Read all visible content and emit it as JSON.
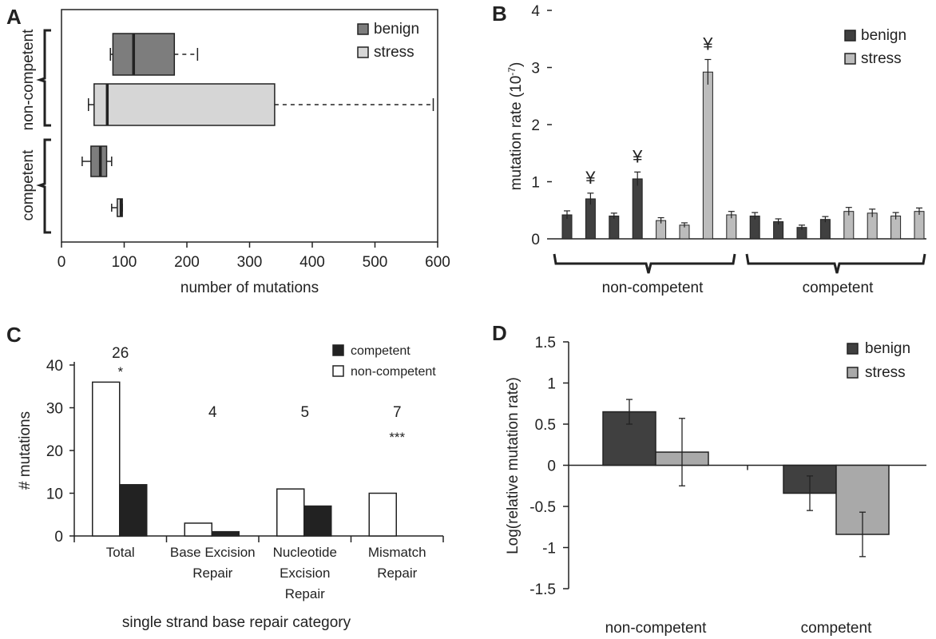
{
  "chart_data": [
    {
      "panel": "A",
      "type": "box",
      "orientation": "horizontal",
      "xlabel": "number of mutations",
      "xlim": [
        0,
        600
      ],
      "xticks": [
        0,
        100,
        200,
        300,
        400,
        500,
        600
      ],
      "group_labels": [
        "non-competent",
        "competent"
      ],
      "legend": [
        "benign",
        "stress"
      ],
      "legend_position": "top-right",
      "colors": {
        "benign": "#7d7d7d",
        "stress": "#d6d6d6"
      },
      "boxes": [
        {
          "group": "non-competent",
          "series": "benign",
          "whisker_low": 78,
          "q1": 82,
          "median": 115,
          "q3": 180,
          "whisker_high": 217
        },
        {
          "group": "non-competent",
          "series": "stress",
          "whisker_low": 43,
          "q1": 52,
          "median": 73,
          "q3": 340,
          "whisker_high": 593
        },
        {
          "group": "competent",
          "series": "benign",
          "whisker_low": 33,
          "q1": 47,
          "median": 62,
          "q3": 72,
          "whisker_high": 80
        },
        {
          "group": "competent",
          "series": "stress",
          "whisker_low": 80,
          "q1": 89,
          "median": 95,
          "q3": 97,
          "whisker_high": 97
        }
      ]
    },
    {
      "panel": "B",
      "type": "bar",
      "ylabel": "mutation rate (10",
      "ylabel_sup": "-7",
      "ylabel_close": ")",
      "ylim": [
        0,
        4
      ],
      "yticks": [
        0,
        1,
        2,
        3,
        4
      ],
      "group_labels": [
        "non-competent",
        "competent"
      ],
      "legend": [
        "benign",
        "stress"
      ],
      "legend_position": "top-right",
      "colors": {
        "benign": "#404040",
        "stress": "#bcbcbc"
      },
      "bars": [
        {
          "value": 0.42,
          "err": 0.07,
          "series": "benign",
          "mark": ""
        },
        {
          "value": 0.7,
          "err": 0.1,
          "series": "benign",
          "mark": "¥"
        },
        {
          "value": 0.4,
          "err": 0.05,
          "series": "benign",
          "mark": ""
        },
        {
          "value": 1.05,
          "err": 0.12,
          "series": "benign",
          "mark": "¥"
        },
        {
          "value": 0.32,
          "err": 0.05,
          "series": "stress",
          "mark": ""
        },
        {
          "value": 0.24,
          "err": 0.04,
          "series": "stress",
          "mark": ""
        },
        {
          "value": 2.92,
          "err": 0.22,
          "series": "stress",
          "mark": "¥"
        },
        {
          "value": 0.42,
          "err": 0.06,
          "series": "stress",
          "mark": ""
        },
        {
          "value": 0.4,
          "err": 0.06,
          "series": "benign",
          "mark": ""
        },
        {
          "value": 0.3,
          "err": 0.05,
          "series": "benign",
          "mark": ""
        },
        {
          "value": 0.2,
          "err": 0.04,
          "series": "benign",
          "mark": ""
        },
        {
          "value": 0.34,
          "err": 0.05,
          "series": "benign",
          "mark": ""
        },
        {
          "value": 0.48,
          "err": 0.07,
          "series": "stress",
          "mark": ""
        },
        {
          "value": 0.45,
          "err": 0.07,
          "series": "stress",
          "mark": ""
        },
        {
          "value": 0.4,
          "err": 0.06,
          "series": "stress",
          "mark": ""
        },
        {
          "value": 0.48,
          "err": 0.06,
          "series": "stress",
          "mark": ""
        }
      ]
    },
    {
      "panel": "C",
      "type": "bar",
      "xlabel": "single strand base repair category",
      "ylabel": "# mutations",
      "ylim": [
        0,
        40
      ],
      "yticks": [
        0,
        10,
        20,
        30,
        40
      ],
      "legend": [
        "competent",
        "non-competent"
      ],
      "legend_position": "top-right",
      "colors": {
        "competent": "#222222",
        "non-competent": "#ffffff"
      },
      "categories": [
        {
          "label_lines": [
            "Total"
          ],
          "count": "26",
          "sig": "*"
        },
        {
          "label_lines": [
            "Base Excision",
            "Repair"
          ],
          "count": "4",
          "sig": ""
        },
        {
          "label_lines": [
            "Nucleotide",
            "Excision",
            "Repair"
          ],
          "count": "5",
          "sig": ""
        },
        {
          "label_lines": [
            "Mismatch",
            "Repair"
          ],
          "count": "7",
          "sig": "***"
        }
      ],
      "series": [
        {
          "name": "non-competent",
          "values": [
            36,
            3,
            11,
            10
          ]
        },
        {
          "name": "competent",
          "values": [
            12,
            1,
            7,
            0
          ]
        }
      ]
    },
    {
      "panel": "D",
      "type": "bar",
      "ylabel": "Log(relative mutation rate)",
      "ylim": [
        -1.5,
        1.5
      ],
      "yticks": [
        "1.5",
        "1",
        "0.5",
        "0",
        "-0.5",
        "-1",
        "-1.5"
      ],
      "categories": [
        "non-competent",
        "competent"
      ],
      "legend": [
        "benign",
        "stress"
      ],
      "legend_position": "top-right",
      "colors": {
        "benign": "#404040",
        "stress": "#a9a9a9"
      },
      "series": [
        {
          "name": "benign",
          "values": [
            0.65,
            -0.34
          ],
          "err": [
            0.15,
            0.21
          ]
        },
        {
          "name": "stress",
          "values": [
            0.16,
            -0.84
          ],
          "err": [
            0.41,
            0.27
          ]
        }
      ]
    }
  ],
  "panel_letters": [
    "A",
    "B",
    "C",
    "D"
  ]
}
